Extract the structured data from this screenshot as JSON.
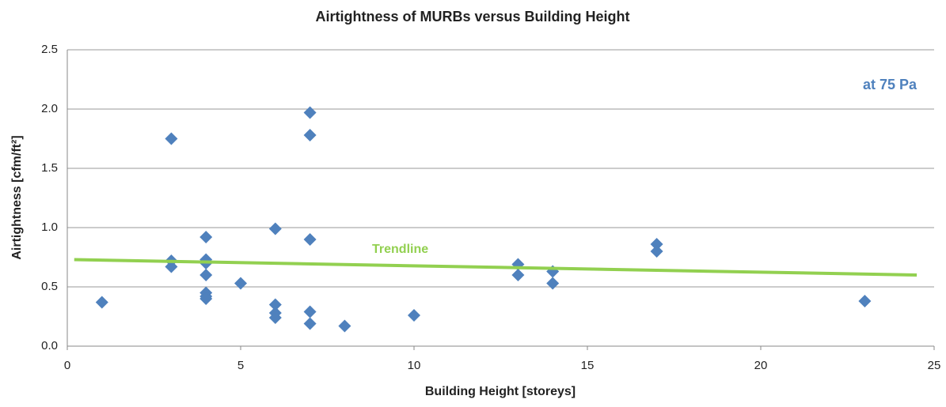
{
  "chart_data": {
    "type": "scatter",
    "title": "Airtightness of MURBs versus Building Height",
    "x_label": "Building Height [storeys]",
    "y_label": "Airtightness [cfm/ft²]",
    "annotation": "at 75 Pa",
    "series": [
      {
        "color": "#4f81bd",
        "x": [
          1,
          3,
          3,
          3,
          4,
          4,
          4,
          4,
          4,
          4,
          4,
          5,
          6,
          6,
          6,
          6,
          7,
          7,
          7,
          7,
          7,
          8,
          10,
          13,
          13,
          14,
          14,
          17,
          17,
          23
        ],
        "values": [
          0.37,
          1.75,
          0.72,
          0.67,
          0.92,
          0.73,
          0.7,
          0.6,
          0.45,
          0.42,
          0.4,
          0.53,
          0.99,
          0.35,
          0.28,
          0.24,
          1.97,
          1.78,
          0.9,
          0.29,
          0.19,
          0.17,
          0.26,
          0.69,
          0.6,
          0.63,
          0.53,
          0.86,
          0.8,
          0.38
        ]
      }
    ],
    "trendline": {
      "name": "Trendline",
      "color": "#92d050",
      "x": [
        0.2,
        24.5
      ],
      "values": [
        0.73,
        0.6
      ]
    },
    "xlim": [
      0,
      25
    ],
    "xticks": [
      0,
      5,
      10,
      15,
      20,
      25
    ],
    "ylim": [
      0,
      2.5
    ],
    "yticks": [
      {
        "value": 0,
        "label": "0.0"
      },
      0.5,
      {
        "value": 1,
        "label": "1.0"
      },
      1.5,
      {
        "value": 2,
        "label": "2.0"
      },
      2.5
    ],
    "grid": true
  }
}
